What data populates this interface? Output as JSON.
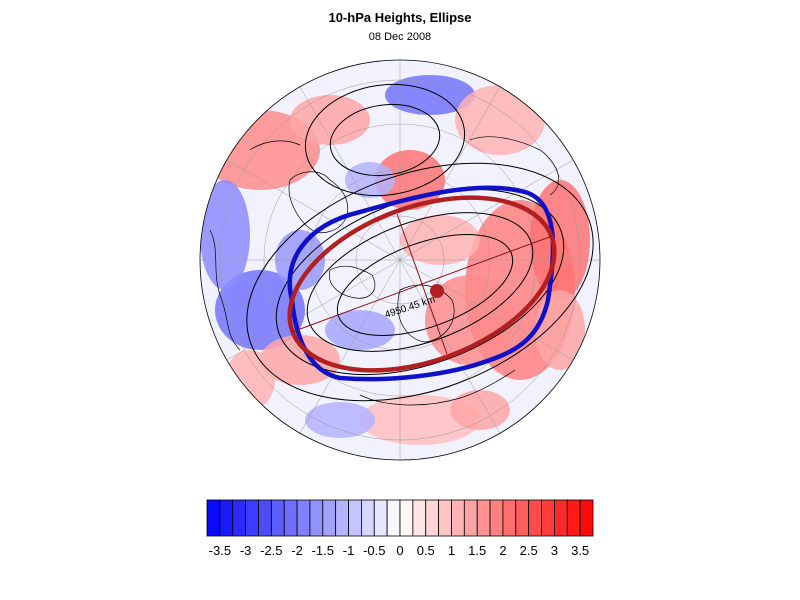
{
  "figure": {
    "title": "10-hPa Heights, Ellipse",
    "date": "08 Dec 2008"
  },
  "map": {
    "projection": "polar stereographic (north pole)",
    "contour_label": "4950.45 km",
    "colors": {
      "blue_contour": "#1010c8",
      "red_ellipse": "#b02020",
      "centroid": "#b02020",
      "contour_lines": "#000000"
    }
  },
  "colorbar": {
    "tick_labels": [
      "-3.5",
      "-3",
      "-2.5",
      "-2",
      "-1.5",
      "-1",
      "-0.5",
      "0",
      "0.5",
      "1",
      "1.5",
      "2",
      "2.5",
      "3",
      "3.5"
    ],
    "n_bins": 30,
    "range": [
      -3.75,
      3.75
    ],
    "colors": {
      "negative_end": "#0000ff",
      "center": "#ffffff",
      "positive_end": "#ff0000"
    }
  }
}
